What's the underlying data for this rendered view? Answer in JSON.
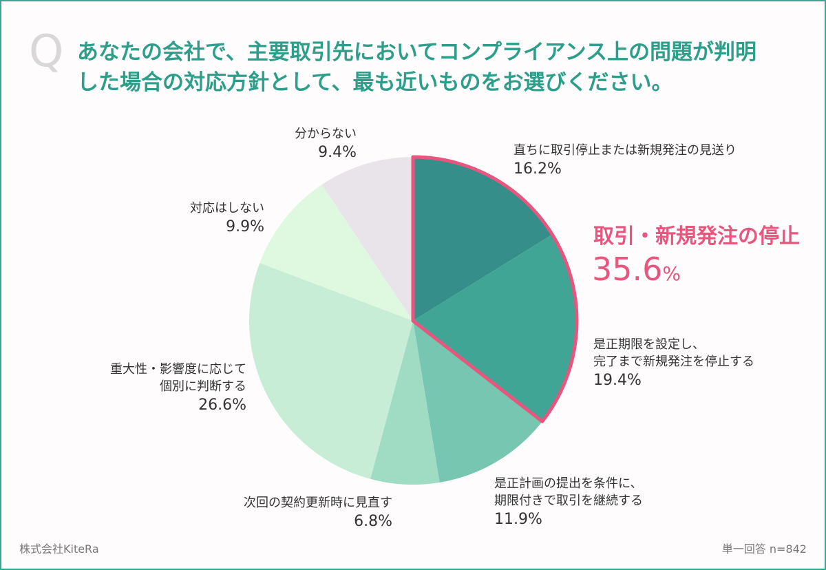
{
  "question": {
    "mark": "Q",
    "line1": "あなたの会社で、主要取引先においてコンプライアンス上の問題が判明",
    "line2": "した場合の対応方針として、最も近いものをお選びください。"
  },
  "highlight": {
    "label": "取引・新規発注の停止",
    "value": "35.6",
    "unit": "%",
    "color": "#e8557d"
  },
  "footer": {
    "left": "株式会社KiteRa",
    "right": "単一回答 n=842"
  },
  "chart_data": {
    "type": "pie",
    "start": "12 o'clock, clockwise",
    "unit": "%",
    "slices": [
      {
        "lines": [
          "直ちに取引停止または新規発注の見送り"
        ],
        "value": 16.2,
        "pct_text": "16.2%",
        "color": "#368e8b",
        "highlight": true
      },
      {
        "lines": [
          "是正期限を設定し、",
          "完了まで新規発注を停止する"
        ],
        "value": 19.4,
        "pct_text": "19.4%",
        "color": "#41a596",
        "highlight": true
      },
      {
        "lines": [
          "是正計画の提出を条件に、",
          "期限付きで取引を継続する"
        ],
        "value": 11.9,
        "pct_text": "11.9%",
        "color": "#76c6b2",
        "highlight": false
      },
      {
        "lines": [
          "次回の契約更新時に見直す"
        ],
        "value": 6.8,
        "pct_text": "6.8%",
        "color": "#a0dbc4",
        "highlight": false
      },
      {
        "lines": [
          "重大性・影響度に応じて",
          "個別に判断する"
        ],
        "value": 26.6,
        "pct_text": "26.6%",
        "color": "#c8edd6",
        "highlight": false
      },
      {
        "lines": [
          "対応はしない"
        ],
        "value": 9.9,
        "pct_text": "9.9%",
        "color": "#dff8e0",
        "highlight": false
      },
      {
        "lines": [
          "分からない"
        ],
        "value": 9.4,
        "pct_text": "9.4%",
        "color": "#e8e4ea",
        "highlight": false
      }
    ]
  }
}
